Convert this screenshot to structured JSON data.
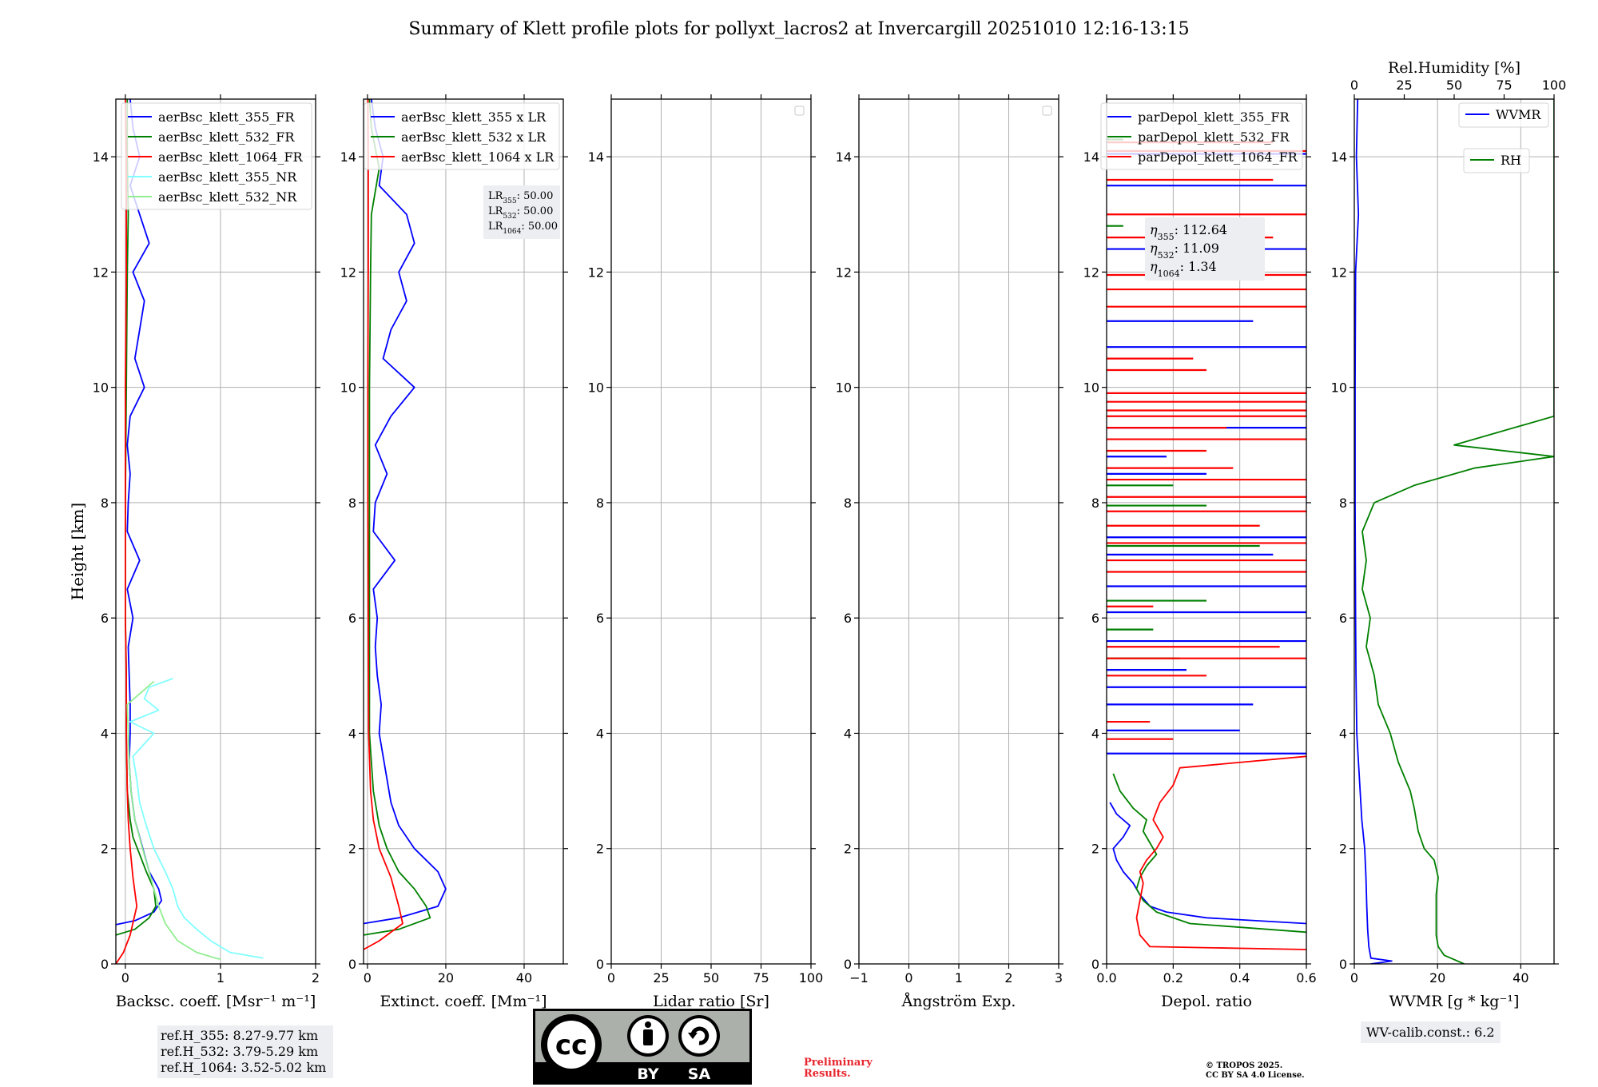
{
  "figure": {
    "title": "Summary of Klett profile plots for pollyxt_lacros2 at Invercargill 20251010 12:16-13:15",
    "ylabel": "Height [km]"
  },
  "chart_data": [
    {
      "type": "line",
      "id": "bsc",
      "xlabel": "Backsc. coeff. [Msr⁻¹ m⁻¹]",
      "xlim": [
        -0.1,
        2
      ],
      "ylim": [
        0,
        15
      ],
      "xticks": [
        0,
        1,
        2
      ],
      "xtick_labels": [
        "0",
        "1",
        "2"
      ],
      "yticks": [
        0,
        2,
        4,
        6,
        8,
        10,
        12,
        14
      ],
      "legend": {
        "position": "top-right"
      },
      "series": [
        {
          "name": "aerBsc_klett_355_FR",
          "color": "#0000ff",
          "h": [
            0.68,
            0.75,
            0.9,
            1.1,
            1.3,
            1.6,
            1.9,
            2.2,
            2.5,
            3.0,
            3.5,
            4.0,
            4.5,
            5.0,
            5.5,
            6.0,
            6.5,
            7.0,
            7.5,
            8.0,
            8.5,
            9.0,
            9.5,
            10.0,
            10.5,
            11.0,
            11.5,
            12.0,
            12.5,
            13.0,
            13.5,
            14.0,
            14.5,
            15.0
          ],
          "v": [
            -0.1,
            0.1,
            0.3,
            0.38,
            0.35,
            0.25,
            0.2,
            0.15,
            0.1,
            0.06,
            0.04,
            0.05,
            0.05,
            0.04,
            0.03,
            0.08,
            0.02,
            0.15,
            0.02,
            0.03,
            0.05,
            0.02,
            0.05,
            0.2,
            0.1,
            0.15,
            0.2,
            0.08,
            0.25,
            0.15,
            0.05,
            0.15,
            0.08,
            0.05
          ]
        },
        {
          "name": "aerBsc_klett_532_FR",
          "color": "#008000",
          "h": [
            0.5,
            0.6,
            0.8,
            1.0,
            1.3,
            1.6,
            1.9,
            2.2,
            2.5,
            3.0,
            4.0,
            5.0,
            6.0,
            8.0,
            10.0,
            12.0,
            13.0,
            14.0,
            15.0
          ],
          "v": [
            -0.1,
            0.1,
            0.25,
            0.32,
            0.3,
            0.22,
            0.15,
            0.08,
            0.05,
            0.02,
            0.01,
            0.01,
            0.0,
            0.0,
            0.01,
            0.02,
            0.03,
            0.02,
            0.02
          ]
        },
        {
          "name": "aerBsc_klett_1064_FR",
          "color": "#ff0000",
          "h": [
            0.0,
            0.2,
            0.5,
            1.0,
            1.5,
            2.0,
            2.5,
            3.0,
            4.0,
            5.0,
            6.0,
            8.0,
            10.0,
            12.0,
            14.0,
            15.0
          ],
          "v": [
            -0.1,
            -0.02,
            0.05,
            0.12,
            0.08,
            0.05,
            0.03,
            0.02,
            0.01,
            0.01,
            0.0,
            0.0,
            0.0,
            0.01,
            0.01,
            0.0
          ]
        },
        {
          "name": "aerBsc_klett_355_NR",
          "color": "#80ffff",
          "h": [
            0.1,
            0.2,
            0.4,
            0.6,
            0.8,
            1.0,
            1.3,
            1.6,
            2.0,
            2.4,
            2.8,
            3.2,
            3.6,
            4.0,
            4.2,
            4.4,
            4.6,
            4.8,
            4.95
          ],
          "v": [
            1.45,
            1.1,
            0.9,
            0.75,
            0.62,
            0.55,
            0.5,
            0.42,
            0.3,
            0.22,
            0.15,
            0.12,
            0.08,
            0.3,
            0.05,
            0.35,
            0.2,
            0.25,
            0.5
          ]
        },
        {
          "name": "aerBsc_klett_532_NR",
          "color": "#90ee90",
          "h": [
            0.08,
            0.1,
            0.2,
            0.4,
            0.7,
            1.0,
            1.3,
            1.6,
            2.0,
            2.5,
            3.0,
            3.5,
            4.0,
            4.5,
            4.9
          ],
          "v": [
            1.0,
            0.95,
            0.75,
            0.55,
            0.42,
            0.35,
            0.3,
            0.25,
            0.18,
            0.1,
            0.06,
            0.04,
            0.03,
            0.02,
            0.3
          ]
        }
      ]
    },
    {
      "type": "line",
      "id": "ext",
      "xlabel": "Extinct. coeff. [Mm⁻¹]",
      "xlim": [
        -1,
        50
      ],
      "ylim": [
        0,
        15
      ],
      "xticks": [
        0,
        20,
        40
      ],
      "xtick_labels": [
        "0",
        "20",
        "40"
      ],
      "yticks": [
        0,
        2,
        4,
        6,
        8,
        10,
        12,
        14
      ],
      "legend": {
        "position": "top-right"
      },
      "annotation": {
        "lines": [
          {
            "label": "LR",
            "sub": "355",
            "value": ": 50.00"
          },
          {
            "label": "LR",
            "sub": "532",
            "value": ": 50.00"
          },
          {
            "label": "LR",
            "sub": "1064",
            "value": ": 50.00"
          }
        ]
      },
      "series": [
        {
          "name": "aerBsc_klett_355 x LR",
          "color": "#0000ff",
          "h": [
            0.7,
            0.8,
            1.0,
            1.3,
            1.6,
            2.0,
            2.4,
            2.8,
            3.2,
            3.6,
            4.0,
            4.5,
            5.0,
            5.5,
            6.0,
            6.5,
            7.0,
            7.5,
            8.0,
            8.5,
            9.0,
            9.5,
            10.0,
            10.5,
            11.0,
            11.5,
            12.0,
            12.5,
            13.0,
            13.5,
            14.0,
            14.5,
            15.0
          ],
          "v": [
            -1,
            8,
            18,
            20,
            18,
            12,
            8,
            6,
            5,
            4,
            3,
            3.5,
            2.5,
            2,
            2.5,
            1.5,
            7,
            1.5,
            2,
            5,
            2,
            6,
            12,
            4,
            6,
            10,
            8,
            12,
            10,
            3,
            4,
            2,
            1
          ]
        },
        {
          "name": "aerBsc_klett_532 x LR",
          "color": "#008000",
          "h": [
            0.5,
            0.6,
            0.8,
            1.0,
            1.3,
            1.6,
            2.0,
            2.4,
            3.0,
            3.5,
            4.0,
            5.0,
            6.0,
            8.0,
            10.0,
            12.0,
            13.0,
            13.8,
            14.5,
            15.0
          ],
          "v": [
            -1,
            8,
            16,
            15,
            12,
            8,
            5,
            3,
            1.5,
            1,
            0.5,
            0.5,
            0.5,
            0.5,
            0.5,
            0.8,
            1,
            3,
            1,
            0.5
          ]
        },
        {
          "name": "aerBsc_klett_1064 x LR",
          "color": "#ff0000",
          "h": [
            0.25,
            0.4,
            0.7,
            1.0,
            1.5,
            2.0,
            2.5,
            3.0,
            4.0,
            6.0,
            8.0,
            10.0,
            12.0,
            14.0,
            15.0
          ],
          "v": [
            -1,
            3,
            9,
            8,
            6,
            3,
            1.5,
            0.8,
            0.3,
            0.2,
            0.1,
            0.1,
            0.2,
            0.2,
            0.1
          ]
        }
      ]
    },
    {
      "type": "line",
      "id": "lr",
      "xlabel": "Lidar ratio [Sr]",
      "xlim": [
        0,
        100
      ],
      "ylim": [
        0,
        15
      ],
      "xticks": [
        0,
        25,
        50,
        75,
        100
      ],
      "xtick_labels": [
        "0",
        "25",
        "50",
        "75",
        "100"
      ],
      "yticks": [
        0,
        2,
        4,
        6,
        8,
        10,
        12,
        14
      ],
      "legend": {
        "position": "top-right"
      },
      "series": []
    },
    {
      "type": "line",
      "id": "ang",
      "xlabel": "Ångström Exp.",
      "xlim": [
        -1,
        3
      ],
      "ylim": [
        0,
        15
      ],
      "xticks": [
        -1,
        0,
        1,
        2,
        3
      ],
      "xtick_labels": [
        "−1",
        "0",
        "1",
        "2",
        "3"
      ],
      "yticks": [
        0,
        2,
        4,
        6,
        8,
        10,
        12,
        14
      ],
      "legend": {
        "position": "top-right"
      },
      "series": []
    },
    {
      "type": "line",
      "id": "depol",
      "xlabel": "Depol. ratio",
      "xlim": [
        0,
        0.6
      ],
      "ylim": [
        0,
        15
      ],
      "xticks": [
        0,
        0.2,
        0.4,
        0.6
      ],
      "xtick_labels": [
        "0.0",
        "0.2",
        "0.4",
        "0.6"
      ],
      "yticks": [
        0,
        2,
        4,
        6,
        8,
        10,
        12,
        14
      ],
      "legend": {
        "position": "top-right"
      },
      "annotation": {
        "lines": [
          {
            "label": "η",
            "sub": "355",
            "value": ": 112.64"
          },
          {
            "label": "η",
            "sub": "532",
            "value": ": 11.09"
          },
          {
            "label": "η",
            "sub": "1064",
            "value": ": 1.34"
          }
        ]
      },
      "series": [
        {
          "name": "parDepol_klett_355_FR",
          "color": "#0000ff",
          "h": [
            0.7,
            0.8,
            0.9,
            1.0,
            1.2,
            1.4,
            1.6,
            1.8,
            2.0,
            2.2,
            2.4,
            2.6,
            2.8
          ],
          "v": [
            0.6,
            0.3,
            0.18,
            0.13,
            0.1,
            0.08,
            0.05,
            0.03,
            0.02,
            0.05,
            0.07,
            0.03,
            0.01
          ],
          "spikes": [
            [
              3.65,
              0.6
            ],
            [
              4.05,
              0.4
            ],
            [
              4.5,
              0.44
            ],
            [
              4.8,
              0.6
            ],
            [
              5.1,
              0.24
            ],
            [
              5.6,
              0.6
            ],
            [
              6.1,
              0.6
            ],
            [
              6.55,
              0.6
            ],
            [
              7.1,
              0.5
            ],
            [
              7.4,
              0.6
            ],
            [
              8.5,
              0.3
            ],
            [
              8.8,
              0.18
            ],
            [
              9.3,
              0.6
            ],
            [
              10.7,
              0.6
            ],
            [
              11.15,
              0.44
            ],
            [
              12.4,
              0.6
            ],
            [
              13.5,
              0.6
            ],
            [
              14.05,
              0.6
            ]
          ]
        },
        {
          "name": "parDepol_klett_532_FR",
          "color": "#008000",
          "h": [
            0.55,
            0.7,
            0.9,
            1.1,
            1.3,
            1.5,
            1.7,
            1.9,
            2.1,
            2.3,
            2.5,
            2.7,
            3.0,
            3.3
          ],
          "v": [
            0.6,
            0.25,
            0.15,
            0.11,
            0.09,
            0.1,
            0.12,
            0.15,
            0.13,
            0.11,
            0.12,
            0.08,
            0.04,
            0.02
          ],
          "spikes": [
            [
              5.3,
              0.22
            ],
            [
              5.8,
              0.14
            ],
            [
              6.3,
              0.3
            ],
            [
              7.25,
              0.46
            ],
            [
              7.95,
              0.3
            ],
            [
              8.3,
              0.2
            ],
            [
              12.8,
              0.05
            ],
            [
              14.3,
              0.05
            ]
          ]
        },
        {
          "name": "parDepol_klett_1064_FR",
          "color": "#ff0000",
          "h": [
            0.25,
            0.3,
            0.5,
            0.8,
            1.1,
            1.4,
            1.6,
            1.8,
            2.0,
            2.2,
            2.5,
            2.8,
            3.1,
            3.4,
            3.6
          ],
          "v": [
            0.6,
            0.13,
            0.1,
            0.09,
            0.1,
            0.11,
            0.1,
            0.12,
            0.15,
            0.17,
            0.14,
            0.16,
            0.2,
            0.22,
            0.6
          ],
          "spikes": [
            [
              3.9,
              0.2
            ],
            [
              4.2,
              0.13
            ],
            [
              5.0,
              0.3
            ],
            [
              5.3,
              0.6
            ],
            [
              5.5,
              0.52
            ],
            [
              6.2,
              0.14
            ],
            [
              6.8,
              0.6
            ],
            [
              7.0,
              0.6
            ],
            [
              7.3,
              0.6
            ],
            [
              7.6,
              0.46
            ],
            [
              7.85,
              0.6
            ],
            [
              8.1,
              0.6
            ],
            [
              8.4,
              0.6
            ],
            [
              8.6,
              0.38
            ],
            [
              8.9,
              0.3
            ],
            [
              9.1,
              0.6
            ],
            [
              9.3,
              0.36
            ],
            [
              9.5,
              0.6
            ],
            [
              9.6,
              0.6
            ],
            [
              9.75,
              0.6
            ],
            [
              9.9,
              0.6
            ],
            [
              10.3,
              0.3
            ],
            [
              10.5,
              0.26
            ],
            [
              11.4,
              0.6
            ],
            [
              11.7,
              0.6
            ],
            [
              11.95,
              0.6
            ],
            [
              12.6,
              0.5
            ],
            [
              13.0,
              0.6
            ],
            [
              13.6,
              0.5
            ],
            [
              14.1,
              0.6
            ],
            [
              14.25,
              0.5
            ]
          ]
        }
      ]
    },
    {
      "type": "line",
      "id": "wv",
      "xlabel": "WVMR [g * kg⁻¹]",
      "xlim": [
        0,
        48
      ],
      "ylim": [
        0,
        15
      ],
      "xticks": [
        0,
        20,
        40
      ],
      "xtick_labels": [
        "0",
        "20",
        "40"
      ],
      "yticks": [
        0,
        2,
        4,
        6,
        8,
        10,
        12,
        14
      ],
      "top_axis": {
        "label": "Rel.Humidity [%]",
        "lim": [
          0,
          100
        ],
        "ticks": [
          0,
          25,
          50,
          75,
          100
        ],
        "tick_labels": [
          "0",
          "25",
          "50",
          "75",
          "100"
        ]
      },
      "legend": {
        "position": "top-right"
      },
      "annotation": {
        "text": "WV-calib.const.: 6.2"
      },
      "series": [
        {
          "name": "WVMR",
          "color": "#0000ff",
          "axis": "bottom",
          "h": [
            0.0,
            0.05,
            0.1,
            0.3,
            0.6,
            1.0,
            1.5,
            2.0,
            2.5,
            3.0,
            3.5,
            4.0,
            5.0,
            6.0,
            8.0,
            10.0,
            12.0,
            13.0,
            14.0,
            15.0
          ],
          "v": [
            4,
            9,
            4,
            3.5,
            3.2,
            3.0,
            2.8,
            2.5,
            1.8,
            1.4,
            1.0,
            0.6,
            0.4,
            0.3,
            0.2,
            0.2,
            0.3,
            1,
            0.5,
            0.8
          ]
        },
        {
          "name": "RH",
          "color": "#008000",
          "axis": "top",
          "h": [
            0.0,
            0.15,
            0.3,
            0.5,
            0.8,
            1.2,
            1.5,
            1.8,
            2.0,
            2.3,
            2.7,
            3.0,
            3.5,
            4.0,
            4.5,
            5.0,
            5.5,
            6.0,
            6.5,
            7.0,
            7.5,
            8.0,
            8.3,
            8.6,
            8.8,
            9.0,
            9.5,
            10.0,
            11.0,
            12.0,
            13.0,
            14.0,
            15.0
          ],
          "v": [
            55,
            45,
            42,
            41,
            41,
            41,
            42,
            40,
            35,
            32,
            30,
            28,
            22,
            18,
            12,
            10,
            6,
            8,
            4,
            6,
            4,
            10,
            30,
            60,
            100,
            50,
            100,
            100,
            100,
            100,
            100,
            100,
            100
          ]
        }
      ]
    }
  ],
  "footer": {
    "ref_lines": [
      "ref.H_355: 8.27-9.77 km",
      "ref.H_532: 3.79-5.29 km",
      "ref.H_1064: 3.52-5.02 km"
    ],
    "preliminary": [
      "Preliminary",
      "Results."
    ],
    "copyright": [
      "© TROPOS 2025.",
      "CC BY SA 4.0 License."
    ],
    "license_badge": {
      "top": "cc",
      "labels": [
        "BY",
        "SA"
      ]
    }
  }
}
